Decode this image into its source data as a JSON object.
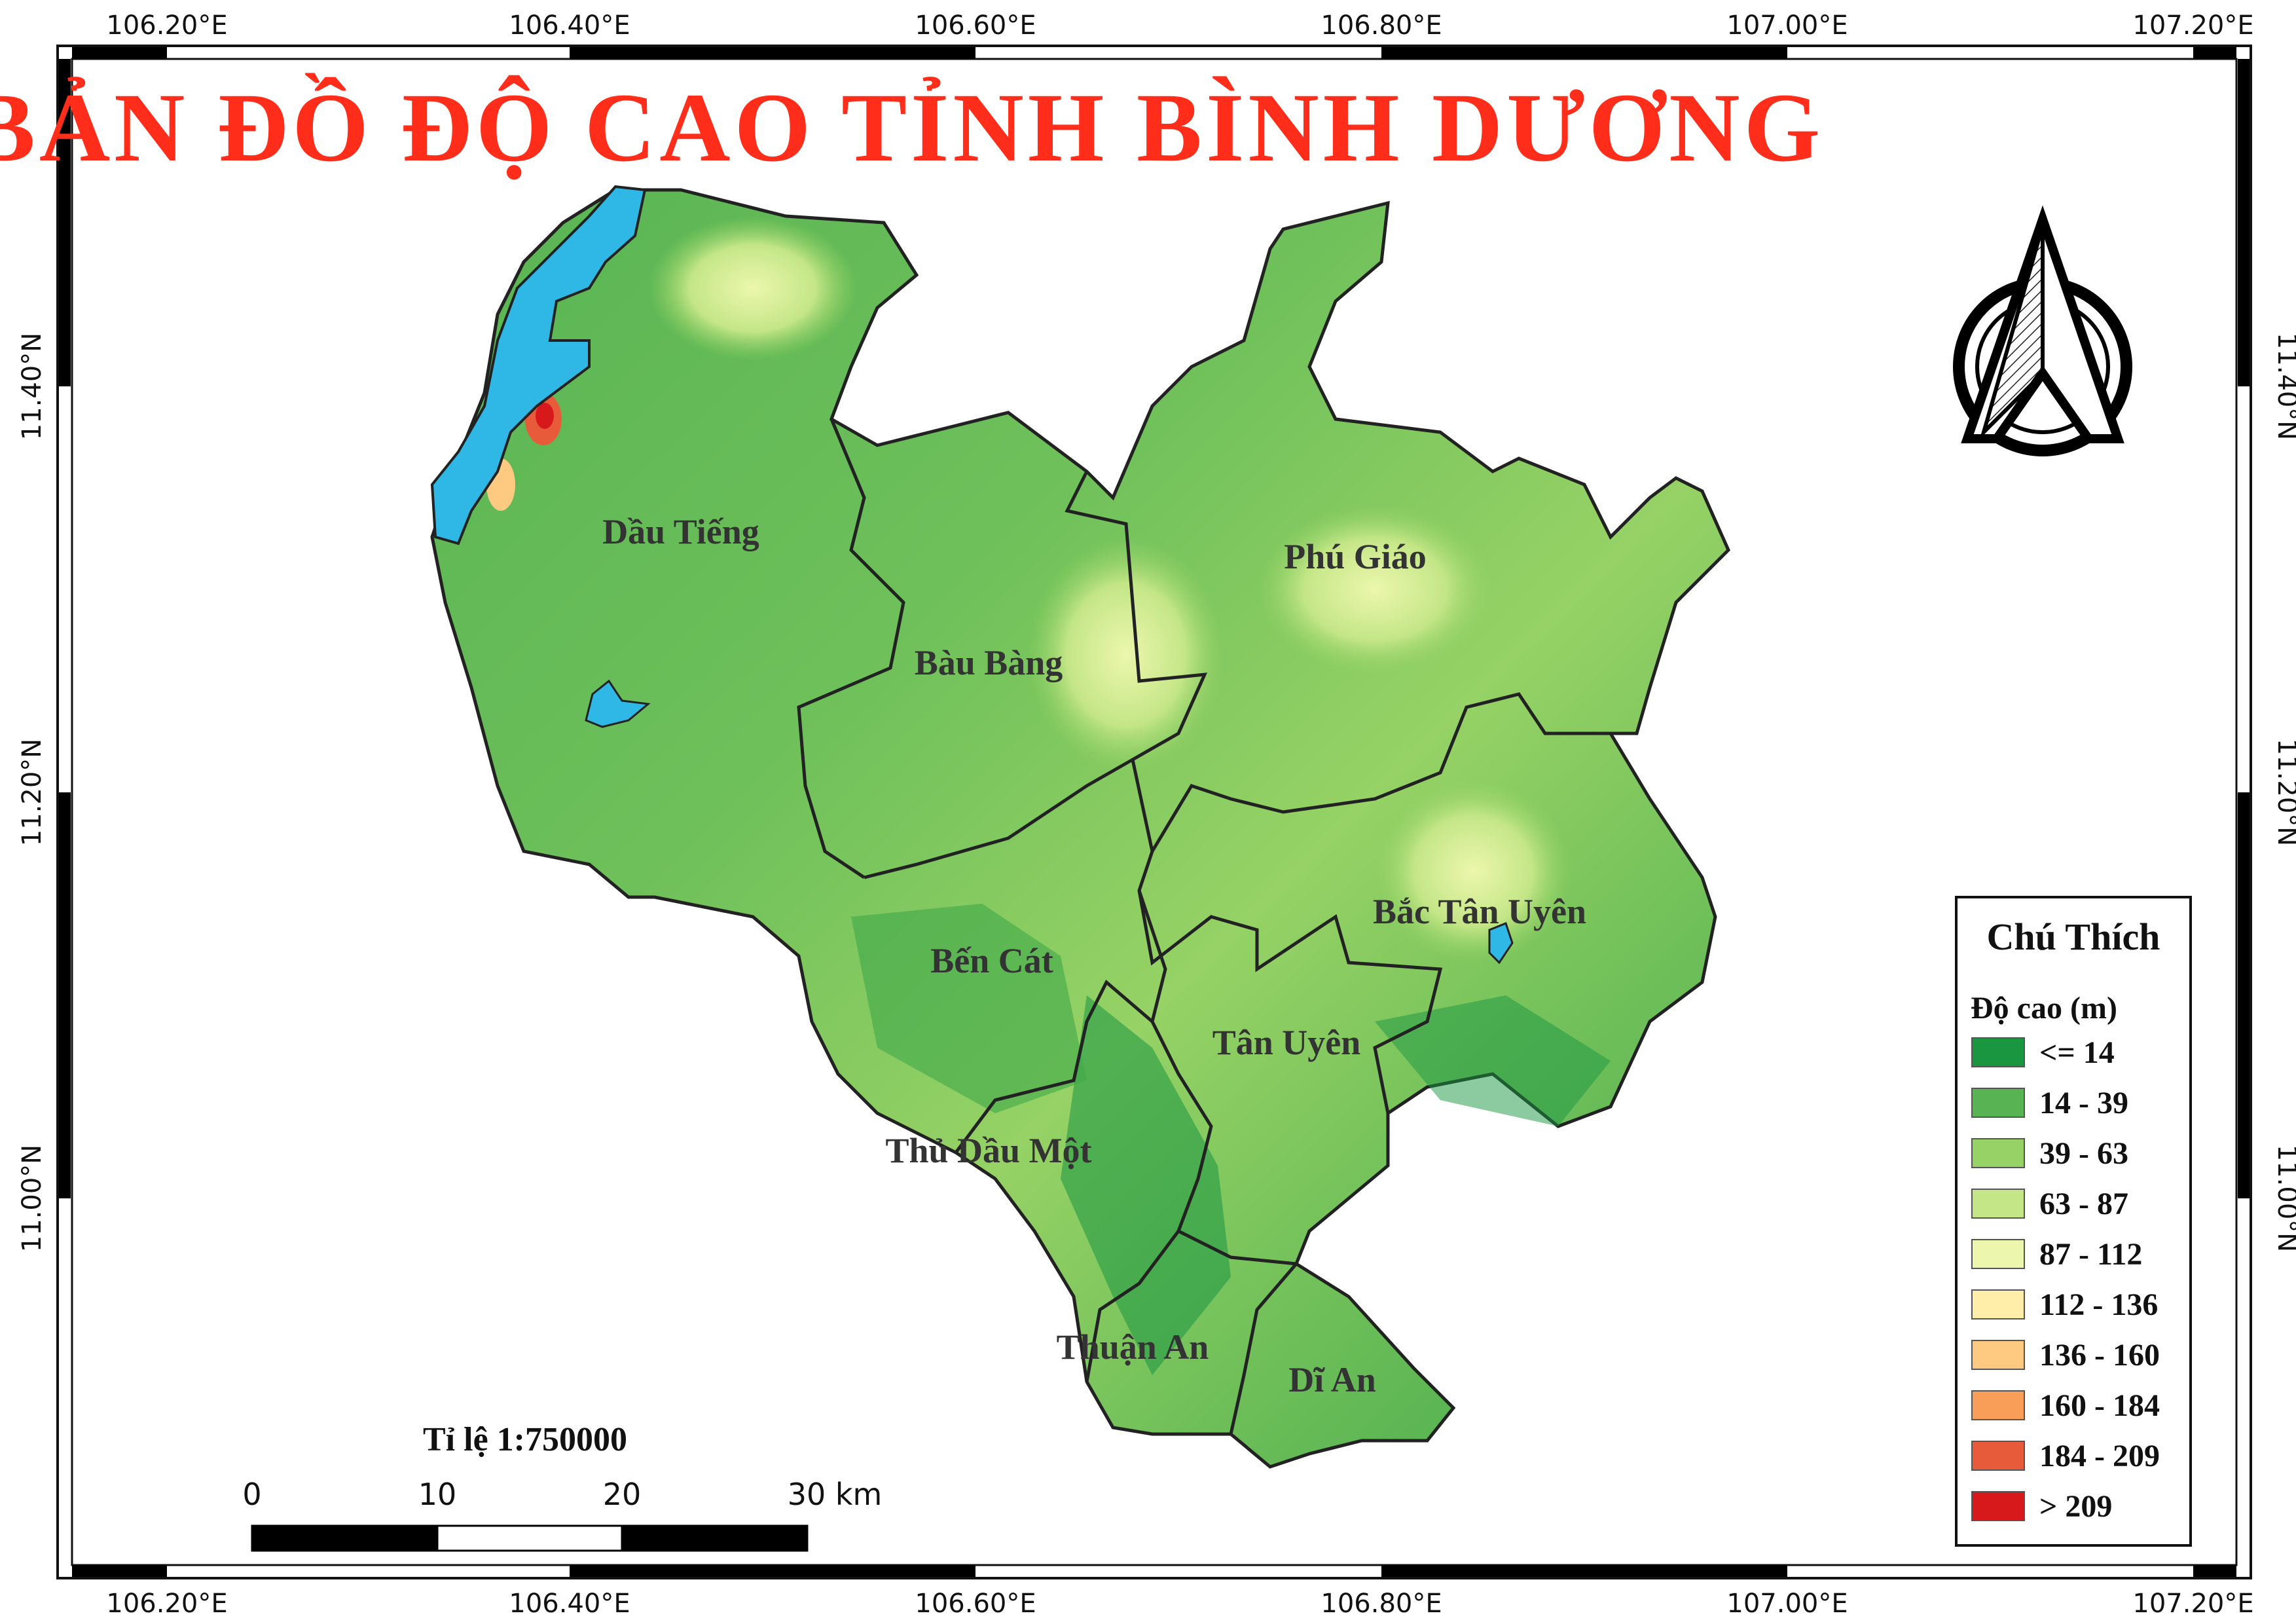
{
  "title": "BẢN ĐỒ ĐỘ CAO TỈNH BÌNH DƯƠNG",
  "longitude_labels": [
    "106.20°E",
    "106.40°E",
    "106.60°E",
    "106.80°E",
    "107.00°E",
    "107.20°E"
  ],
  "latitude_labels": [
    "11.40°N",
    "11.20°N",
    "11.00°N"
  ],
  "districts": [
    {
      "name": "Dầu Tiếng"
    },
    {
      "name": "Bàu Bàng"
    },
    {
      "name": "Phú Giáo"
    },
    {
      "name": "Bắc Tân Uyên"
    },
    {
      "name": "Bến Cát"
    },
    {
      "name": "Tân Uyên"
    },
    {
      "name": "Thủ Dầu Một"
    },
    {
      "name": "Thuận An"
    },
    {
      "name": "Dĩ An"
    }
  ],
  "legend": {
    "title": "Chú Thích",
    "subtitle": "Độ cao (m)",
    "items": [
      {
        "label": "<= 14",
        "color": "#1a9641"
      },
      {
        "label": "14 - 39",
        "color": "#58b453"
      },
      {
        "label": "39 - 63",
        "color": "#96d265"
      },
      {
        "label": "63 - 87",
        "color": "#c4e687"
      },
      {
        "label": "87 - 112",
        "color": "#ecf7ad"
      },
      {
        "label": "112 - 136",
        "color": "#ffedaa"
      },
      {
        "label": "136 - 160",
        "color": "#fec980"
      },
      {
        "label": "160 - 184",
        "color": "#f99e59"
      },
      {
        "label": "184 - 209",
        "color": "#e85b3a"
      },
      {
        "label": "> 209",
        "color": "#d7191c"
      }
    ]
  },
  "scale": {
    "title": "Tỉ lệ 1:750000",
    "ticks": [
      "0",
      "10",
      "20",
      "30 km"
    ]
  },
  "colors": {
    "title": "#ff2d1a",
    "water": "#2fb7e6",
    "boundary": "#222222"
  },
  "icons": {
    "north_arrow": "north-arrow-icon"
  }
}
